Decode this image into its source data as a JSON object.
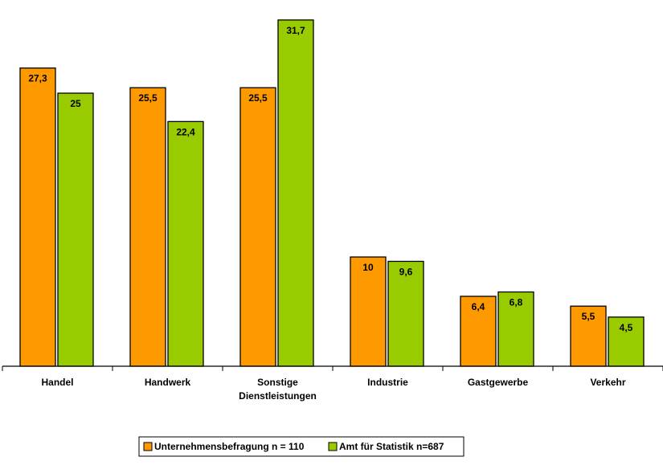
{
  "chart_data": {
    "type": "bar",
    "categories": [
      "Handel",
      "Handwerk",
      "Sonstige Dienstleistungen",
      "Industrie",
      "Gastgewerbe",
      "Verkehr"
    ],
    "category_lines": [
      [
        "Handel"
      ],
      [
        "Handwerk"
      ],
      [
        "Sonstige",
        "Dienstleistungen"
      ],
      [
        "Industrie"
      ],
      [
        "Gastgewerbe"
      ],
      [
        "Verkehr"
      ]
    ],
    "series": [
      {
        "name": "Unternehmensbefragung n = 110",
        "color": "#ff9900",
        "values": [
          27.3,
          25.5,
          25.5,
          10,
          6.4,
          5.5
        ],
        "labels": [
          "27,3",
          "25,5",
          "25,5",
          "10",
          "6,4",
          "5,5"
        ]
      },
      {
        "name": "Amt für Statistik n=687",
        "color": "#99cc00",
        "values": [
          25,
          22.4,
          31.7,
          9.6,
          6.8,
          4.5
        ],
        "labels": [
          "25",
          "22,4",
          "31,7",
          "9,6",
          "6,8",
          "4,5"
        ]
      }
    ],
    "ylim": [
      0,
      32
    ],
    "grid": false,
    "legend_position": "bottom-center"
  }
}
